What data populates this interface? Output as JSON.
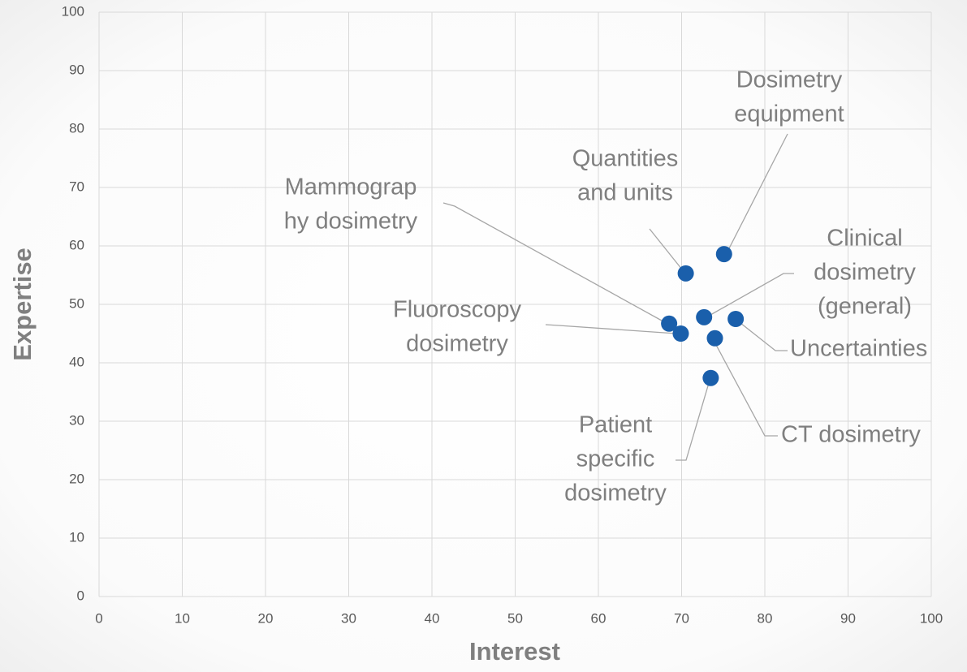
{
  "chart_data": {
    "type": "scatter",
    "x_label": "Interest",
    "y_label": "Expertise",
    "labels": [
      [
        "Dosimetry",
        "equipment"
      ],
      [
        "Quantities",
        "and units"
      ],
      [
        "Clinical",
        "dosimetry",
        "(general)"
      ],
      [
        "Uncertainties"
      ],
      [
        "Mammograp",
        "hy dosimetry"
      ],
      [
        "Fluoroscopy",
        "dosimetry"
      ],
      [
        "CT dosimetry"
      ],
      [
        "Patient",
        "specific",
        "dosimetry"
      ]
    ],
    "x": [
      75.1,
      70.5,
      72.7,
      76.5,
      68.5,
      69.9,
      74.0,
      73.5
    ],
    "values": [
      58.6,
      55.3,
      47.8,
      47.5,
      46.7,
      45.0,
      44.2,
      37.4
    ],
    "color": "#1a5fab",
    "xlim": [
      0,
      100
    ],
    "xticks": [
      0,
      10,
      20,
      30,
      40,
      50,
      60,
      70,
      80,
      90,
      100
    ],
    "ylim": [
      0,
      100
    ],
    "yticks": [
      0,
      10,
      20,
      30,
      40,
      50,
      60,
      70,
      80,
      90,
      100
    ],
    "grid": true
  }
}
